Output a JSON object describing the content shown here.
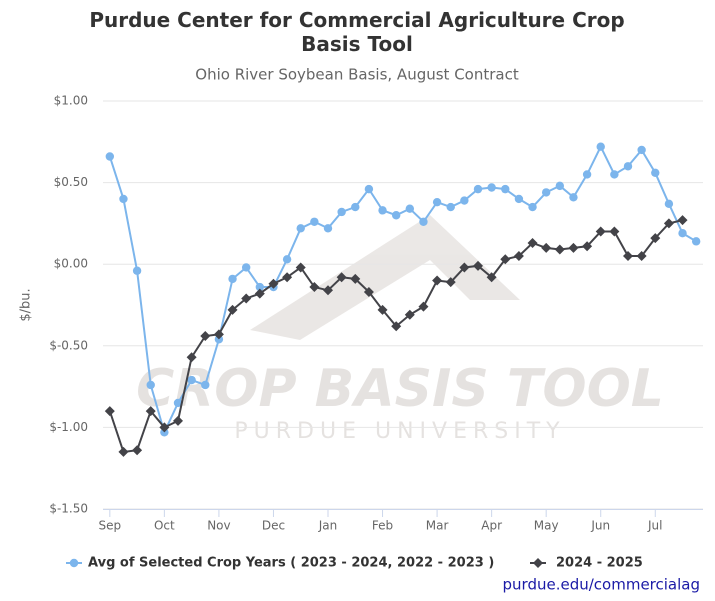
{
  "chart_data": {
    "type": "line",
    "title": "Purdue Center for Commercial Agriculture Crop Basis Tool",
    "subtitle": "Ohio River Soybean Basis, August Contract",
    "y_label": "$/bu.",
    "watermark": [
      "CROP BASIS TOOL",
      "PURDUE UNIVERSITY"
    ],
    "credit": "purdue.edu/commercialag",
    "x": [
      0,
      1,
      2,
      3,
      4,
      5,
      6,
      7,
      8,
      9,
      10,
      11,
      12,
      13,
      14,
      15,
      16,
      17,
      18,
      19,
      20,
      21,
      22,
      23,
      24,
      25,
      26,
      27,
      28,
      29,
      30,
      31,
      32,
      33,
      34,
      35,
      36,
      37,
      38,
      39,
      40,
      41,
      42,
      43
    ],
    "xlim": [
      -0.5,
      43.5
    ],
    "xticks": [
      {
        "value": 0,
        "label": "Sep"
      },
      {
        "value": 4,
        "label": "Oct"
      },
      {
        "value": 8,
        "label": "Nov"
      },
      {
        "value": 12,
        "label": "Dec"
      },
      {
        "value": 16,
        "label": "Jan"
      },
      {
        "value": 20,
        "label": "Feb"
      },
      {
        "value": 24,
        "label": "Mar"
      },
      {
        "value": 28,
        "label": "Apr"
      },
      {
        "value": 32,
        "label": "May"
      },
      {
        "value": 36,
        "label": "Jun"
      },
      {
        "value": 40,
        "label": "Jul"
      }
    ],
    "ylim": [
      -1.5,
      1.0
    ],
    "yticks": [
      {
        "value": 1.0,
        "label": "$1.00"
      },
      {
        "value": 0.5,
        "label": "$0.50"
      },
      {
        "value": 0,
        "label": "$0.00"
      },
      {
        "value": -0.5,
        "label": "$-0.50"
      },
      {
        "value": -1.0,
        "label": "$-1.00"
      },
      {
        "value": -1.5,
        "label": "$-1.50"
      }
    ],
    "grid": true,
    "legend": "bottom",
    "series": [
      {
        "name": "Avg of Selected Crop Years ( 2023 - 2024, 2022 - 2023 )",
        "color": "#7cb5ec",
        "marker": "circle",
        "values": [
          0.66,
          0.4,
          -0.04,
          -0.74,
          -1.03,
          -0.85,
          -0.71,
          -0.74,
          -0.46,
          -0.09,
          -0.02,
          -0.14,
          -0.14,
          0.03,
          0.22,
          0.26,
          0.22,
          0.32,
          0.35,
          0.46,
          0.33,
          0.3,
          0.34,
          0.26,
          0.38,
          0.35,
          0.39,
          0.46,
          0.47,
          0.46,
          0.4,
          0.35,
          0.44,
          0.48,
          0.41,
          0.55,
          0.72,
          0.55,
          0.6,
          0.7,
          0.56,
          0.37,
          0.19,
          0.14
        ]
      },
      {
        "name": "2024 - 2025",
        "color": "#434348",
        "marker": "diamond",
        "values": [
          -0.9,
          -1.15,
          -1.14,
          -0.9,
          -1.0,
          -0.96,
          -0.57,
          -0.44,
          -0.43,
          -0.28,
          -0.21,
          -0.18,
          -0.12,
          -0.08,
          -0.02,
          -0.14,
          -0.16,
          -0.08,
          -0.09,
          -0.17,
          -0.28,
          -0.38,
          -0.31,
          -0.26,
          -0.1,
          -0.11,
          -0.02,
          -0.01,
          -0.08,
          0.03,
          0.05,
          0.13,
          0.1,
          0.09,
          0.1,
          0.11,
          0.2,
          0.2,
          0.05,
          0.05,
          0.16,
          0.25,
          0.27,
          null
        ]
      }
    ]
  }
}
